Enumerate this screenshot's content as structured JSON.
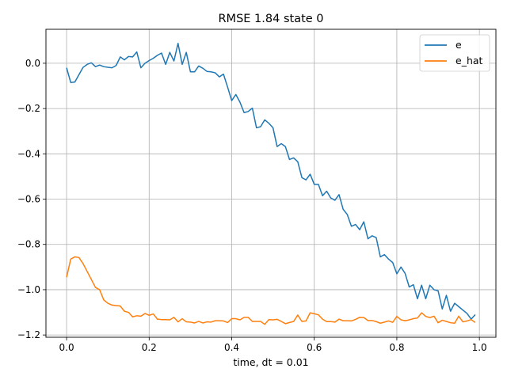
{
  "chart_data": {
    "type": "line",
    "title": "RMSE 1.84 state 0",
    "xlabel": "time, dt = 0.01",
    "ylabel": "",
    "xlim": [
      -0.05,
      1.04
    ],
    "ylim": [
      -1.21,
      0.15
    ],
    "xticks": [
      0.0,
      0.2,
      0.4,
      0.6,
      0.8,
      1.0
    ],
    "xtick_labels": [
      "0.0",
      "0.2",
      "0.4",
      "0.6",
      "0.8",
      "1.0"
    ],
    "yticks": [
      0.0,
      -0.2,
      -0.4,
      -0.6,
      -0.8,
      -1.0,
      -1.2
    ],
    "ytick_labels": [
      "0.0",
      "−0.2",
      "−0.4",
      "−0.6",
      "−0.8",
      "−1.0",
      "−1.2"
    ],
    "grid": true,
    "legend_position": "top-right",
    "x": [
      0.0,
      0.01,
      0.02,
      0.03,
      0.04,
      0.05,
      0.06,
      0.07,
      0.08,
      0.09,
      0.1,
      0.11,
      0.12,
      0.13,
      0.14,
      0.15,
      0.16,
      0.17,
      0.18,
      0.19,
      0.2,
      0.21,
      0.22,
      0.23,
      0.24,
      0.25,
      0.26,
      0.27,
      0.28,
      0.29,
      0.3,
      0.31,
      0.32,
      0.33,
      0.34,
      0.35,
      0.36,
      0.37,
      0.38,
      0.39,
      0.4,
      0.41,
      0.42,
      0.43,
      0.44,
      0.45,
      0.46,
      0.47,
      0.48,
      0.49,
      0.5,
      0.51,
      0.52,
      0.53,
      0.54,
      0.55,
      0.56,
      0.57,
      0.58,
      0.59,
      0.6,
      0.61,
      0.62,
      0.63,
      0.64,
      0.65,
      0.66,
      0.67,
      0.68,
      0.69,
      0.7,
      0.71,
      0.72,
      0.73,
      0.74,
      0.75,
      0.76,
      0.77,
      0.78,
      0.79,
      0.8,
      0.81,
      0.82,
      0.83,
      0.84,
      0.85,
      0.86,
      0.87,
      0.88,
      0.89,
      0.9,
      0.91,
      0.92,
      0.93,
      0.94,
      0.95,
      0.96,
      0.97,
      0.98,
      0.99
    ],
    "series": [
      {
        "name": "e",
        "color": "#1f77b4",
        "values": [
          -0.02,
          -0.085,
          -0.083,
          -0.05,
          -0.018,
          -0.005,
          0.002,
          -0.015,
          -0.008,
          -0.015,
          -0.018,
          -0.02,
          -0.01,
          0.028,
          0.015,
          0.03,
          0.028,
          0.05,
          -0.02,
          0.0,
          0.012,
          0.022,
          0.035,
          0.045,
          -0.005,
          0.048,
          0.01,
          0.088,
          -0.005,
          0.048,
          -0.038,
          -0.038,
          -0.012,
          -0.022,
          -0.036,
          -0.038,
          -0.042,
          -0.06,
          -0.048,
          -0.105,
          -0.165,
          -0.138,
          -0.172,
          -0.218,
          -0.213,
          -0.198,
          -0.285,
          -0.28,
          -0.25,
          -0.265,
          -0.285,
          -0.368,
          -0.355,
          -0.368,
          -0.425,
          -0.418,
          -0.435,
          -0.505,
          -0.515,
          -0.49,
          -0.535,
          -0.535,
          -0.585,
          -0.565,
          -0.595,
          -0.605,
          -0.58,
          -0.645,
          -0.668,
          -0.72,
          -0.712,
          -0.735,
          -0.7,
          -0.775,
          -0.762,
          -0.77,
          -0.855,
          -0.845,
          -0.865,
          -0.88,
          -0.93,
          -0.9,
          -0.928,
          -0.988,
          -0.978,
          -1.04,
          -0.98,
          -1.04,
          -0.98,
          -1.0,
          -1.005,
          -1.085,
          -1.025,
          -1.095,
          -1.06,
          -1.075,
          -1.09,
          -1.105,
          -1.13,
          -1.11
        ]
      },
      {
        "name": "e_hat",
        "color": "#ff7f0e",
        "values": [
          -0.945,
          -0.865,
          -0.855,
          -0.858,
          -0.885,
          -0.92,
          -0.955,
          -0.99,
          -1.0,
          -1.045,
          -1.06,
          -1.068,
          -1.07,
          -1.072,
          -1.095,
          -1.1,
          -1.12,
          -1.115,
          -1.117,
          -1.105,
          -1.113,
          -1.107,
          -1.13,
          -1.132,
          -1.132,
          -1.133,
          -1.122,
          -1.142,
          -1.128,
          -1.142,
          -1.143,
          -1.147,
          -1.14,
          -1.147,
          -1.142,
          -1.143,
          -1.137,
          -1.137,
          -1.138,
          -1.145,
          -1.128,
          -1.128,
          -1.133,
          -1.122,
          -1.122,
          -1.14,
          -1.14,
          -1.14,
          -1.153,
          -1.132,
          -1.133,
          -1.131,
          -1.14,
          -1.15,
          -1.145,
          -1.14,
          -1.112,
          -1.14,
          -1.138,
          -1.102,
          -1.106,
          -1.111,
          -1.13,
          -1.141,
          -1.141,
          -1.143,
          -1.13,
          -1.137,
          -1.137,
          -1.138,
          -1.131,
          -1.122,
          -1.123,
          -1.136,
          -1.136,
          -1.141,
          -1.148,
          -1.143,
          -1.138,
          -1.144,
          -1.118,
          -1.133,
          -1.137,
          -1.133,
          -1.128,
          -1.125,
          -1.102,
          -1.118,
          -1.123,
          -1.117,
          -1.146,
          -1.135,
          -1.14,
          -1.146,
          -1.148,
          -1.117,
          -1.142,
          -1.138,
          -1.132,
          -1.145
        ]
      }
    ]
  }
}
